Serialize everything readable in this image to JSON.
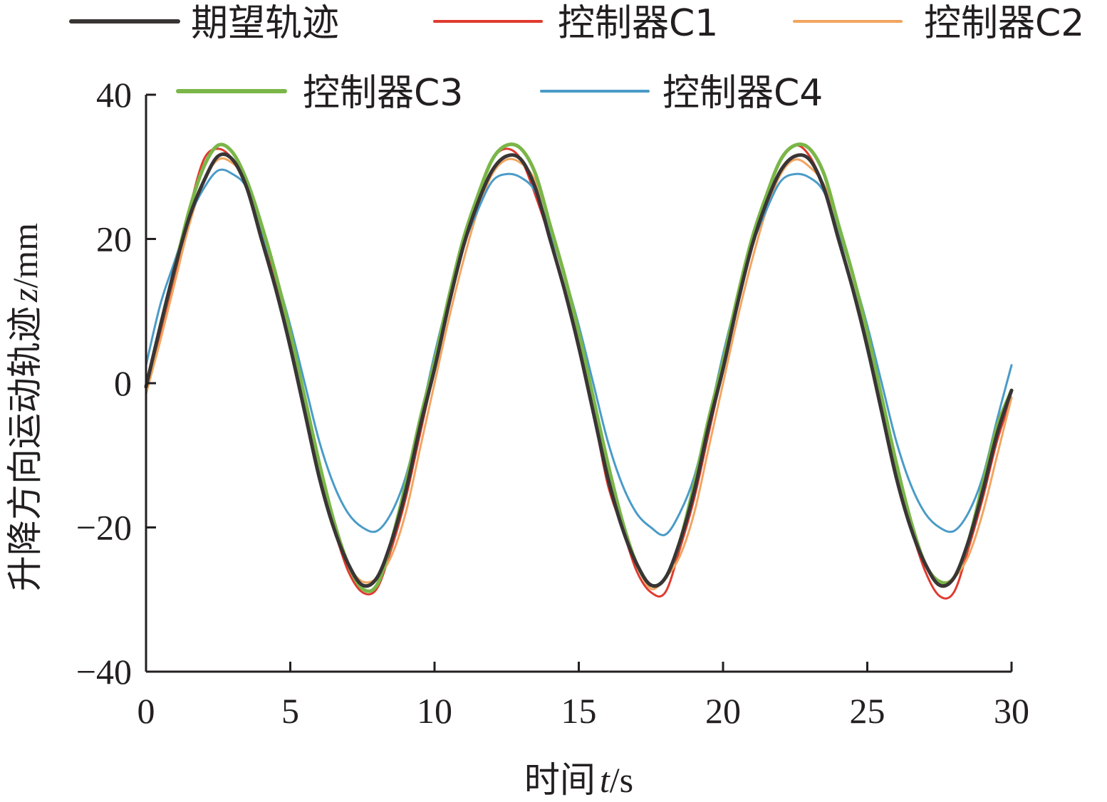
{
  "chart_data": {
    "type": "line",
    "xlabel": {
      "prefix": "时间",
      "var": "t",
      "unit": "/s"
    },
    "ylabel": {
      "prefix": "升降方向运动轨迹",
      "var": "z",
      "unit": "/mm"
    },
    "xlim": [
      0,
      30
    ],
    "ylim": [
      -40,
      40
    ],
    "xticks": [
      0,
      5,
      10,
      15,
      20,
      25,
      30
    ],
    "yticks": [
      40,
      20,
      0,
      -20,
      -40
    ],
    "ytick_labels": [
      "40",
      "20",
      "0",
      "−20",
      "−40"
    ],
    "grid": false,
    "legend_position": "top",
    "x": [
      0,
      0.5,
      1,
      1.5,
      2,
      2.5,
      3,
      3.5,
      4,
      4.5,
      5,
      5.5,
      6,
      6.5,
      7,
      7.5,
      8,
      8.5,
      9,
      9.5,
      10,
      10.5,
      11,
      11.5,
      12,
      12.5,
      13,
      13.5,
      14,
      14.5,
      15,
      15.5,
      16,
      16.5,
      17,
      17.5,
      18,
      18.5,
      19,
      19.5,
      20,
      20.5,
      21,
      21.5,
      22,
      22.5,
      23,
      23.5,
      24,
      24.5,
      25,
      25.5,
      26,
      26.5,
      27,
      27.5,
      28,
      28.5,
      29,
      29.5,
      30
    ],
    "series": [
      {
        "name": "期望轨迹",
        "color": "#3a3535",
        "width": 5,
        "values": [
          -0.5,
          8,
          16,
          23,
          28,
          31.5,
          31,
          27,
          20,
          13,
          5,
          -4,
          -13,
          -20,
          -25,
          -28,
          -27,
          -22,
          -15,
          -6,
          2,
          11,
          19,
          25,
          29.5,
          31.5,
          31,
          27,
          20,
          13,
          5,
          -4,
          -13,
          -20,
          -25,
          -28,
          -27,
          -22,
          -15,
          -6,
          2,
          11,
          19,
          25,
          29.5,
          31.5,
          31,
          27,
          20,
          13,
          5,
          -4,
          -13,
          -20,
          -25,
          -28,
          -27,
          -22,
          -15,
          -7,
          -1
        ]
      },
      {
        "name": "控制器C1",
        "color": "#e03a2e",
        "width": 3,
        "values": [
          -1,
          7,
          15,
          24,
          31,
          32.5,
          31,
          27,
          21,
          14,
          6,
          -3,
          -13,
          -20,
          -26,
          -29,
          -28.5,
          -23,
          -16,
          -7,
          2,
          11,
          20,
          26,
          31,
          32.5,
          31,
          26,
          20,
          13,
          5,
          -4,
          -14,
          -20,
          -26,
          -29,
          -29,
          -23,
          -16,
          -7,
          2,
          11,
          20,
          26,
          31,
          33,
          31.5,
          27,
          20,
          13,
          6,
          -3,
          -13,
          -20,
          -26,
          -29.5,
          -29,
          -23,
          -16,
          -8,
          -2
        ]
      },
      {
        "name": "控制器C2",
        "color": "#f2a560",
        "width": 3,
        "values": [
          -1.5,
          6,
          14,
          22,
          28,
          31,
          30.5,
          28,
          22,
          15,
          7,
          -2,
          -11,
          -19,
          -25,
          -27.5,
          -27,
          -24,
          -18,
          -9,
          0,
          9,
          17,
          24,
          29,
          31,
          30.5,
          28,
          22,
          15,
          7,
          -2,
          -11,
          -19,
          -25,
          -28.5,
          -27,
          -24,
          -18,
          -9,
          0,
          9,
          17,
          24,
          29,
          31,
          30,
          27.5,
          22,
          15,
          7,
          -2,
          -11,
          -19,
          -25,
          -27.5,
          -27,
          -24,
          -18,
          -10,
          -2
        ]
      },
      {
        "name": "控制器C3",
        "color": "#7ab648",
        "width": 5,
        "values": [
          -0.5,
          8,
          16,
          24,
          30,
          33,
          32,
          28,
          22,
          15,
          7,
          -2,
          -11,
          -19,
          -25,
          -28.5,
          -28,
          -22,
          -14,
          -5,
          3,
          12,
          20,
          26,
          31,
          33,
          32.5,
          29,
          22,
          15,
          7,
          -2,
          -11,
          -19,
          -25,
          -28,
          -27,
          -22,
          -14,
          -5,
          3,
          12,
          20,
          26,
          31,
          33,
          32.5,
          29,
          22,
          15,
          7,
          -2,
          -11,
          -19,
          -25,
          -27.5,
          -27,
          -22,
          -14,
          -6,
          -1
        ]
      },
      {
        "name": "控制器C4",
        "color": "#4a9bc8",
        "width": 3,
        "values": [
          2.5,
          11,
          17,
          23,
          27,
          29.5,
          29,
          27,
          21,
          15,
          8,
          0,
          -8,
          -14,
          -18,
          -20,
          -20.5,
          -18,
          -13,
          -5,
          4,
          12,
          19,
          24,
          28,
          29,
          28.5,
          26.5,
          21,
          15,
          8,
          0,
          -8,
          -14,
          -18,
          -20,
          -21,
          -18,
          -13,
          -5,
          4,
          12,
          19,
          24,
          28,
          29,
          28.5,
          26.5,
          21,
          15,
          8,
          0,
          -8,
          -14,
          -18,
          -20,
          -20.5,
          -18,
          -13,
          -5,
          2.5
        ]
      }
    ]
  }
}
